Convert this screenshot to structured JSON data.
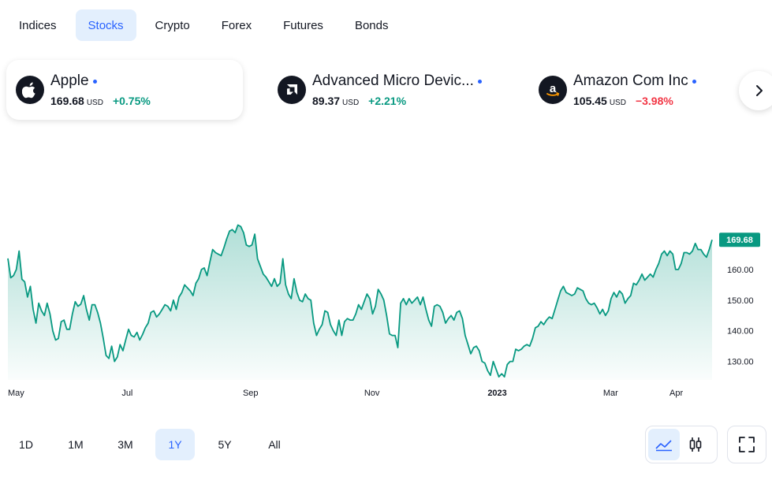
{
  "tabs": [
    {
      "label": "Indices",
      "active": false
    },
    {
      "label": "Stocks",
      "active": true
    },
    {
      "label": "Crypto",
      "active": false
    },
    {
      "label": "Forex",
      "active": false
    },
    {
      "label": "Futures",
      "active": false
    },
    {
      "label": "Bonds",
      "active": false
    }
  ],
  "tickers": [
    {
      "name": "Apple",
      "price": "169.68",
      "currency": "USD",
      "change": "+0.75%",
      "direction": "up",
      "icon": "apple-logo-icon",
      "selected": true
    },
    {
      "name": "Advanced Micro Devic...",
      "price": "89.37",
      "currency": "USD",
      "change": "+2.21%",
      "direction": "up",
      "icon": "amd-logo-icon",
      "selected": false
    },
    {
      "name": "Amazon Com Inc",
      "price": "105.45",
      "currency": "USD",
      "change": "−3.98%",
      "direction": "down",
      "icon": "amazon-logo-icon",
      "selected": false
    }
  ],
  "ranges": [
    {
      "label": "1D",
      "active": false
    },
    {
      "label": "1M",
      "active": false
    },
    {
      "label": "3M",
      "active": false
    },
    {
      "label": "1Y",
      "active": true
    },
    {
      "label": "5Y",
      "active": false
    },
    {
      "label": "All",
      "active": false
    }
  ],
  "controls": {
    "next_icon": "chevron-right-icon",
    "area_icon": "area-chart-icon",
    "candle_icon": "candlestick-icon",
    "fullscreen_icon": "fullscreen-icon"
  },
  "colors": {
    "accent": "#2962ff",
    "line": "#089981",
    "positive": "#089981",
    "negative": "#f23645"
  },
  "chart_data": {
    "type": "area",
    "title": "",
    "xlabel": "",
    "ylabel": "",
    "x_ticks": [
      {
        "label": "May",
        "date": "2022-05-02"
      },
      {
        "label": "Jul",
        "date": "2022-07-01"
      },
      {
        "label": "Sep",
        "date": "2022-09-01"
      },
      {
        "label": "Nov",
        "date": "2022-11-01"
      },
      {
        "label": "2023",
        "date": "2023-01-03",
        "bold": true
      },
      {
        "label": "Mar",
        "date": "2023-03-01"
      },
      {
        "label": "Apr",
        "date": "2023-04-03"
      }
    ],
    "y_ticks": [
      130,
      140,
      150,
      160
    ],
    "ylim": [
      124,
      198
    ],
    "xlim": [
      "2022-05-02",
      "2023-04-21"
    ],
    "last_value": "169.68",
    "grid": false,
    "series": [
      {
        "values": [
          [
            0,
            163.6
          ],
          [
            1,
            157.3
          ],
          [
            2,
            158.0
          ],
          [
            3,
            160.0
          ],
          [
            4,
            166.0
          ],
          [
            5,
            156.8
          ],
          [
            6,
            156.0
          ],
          [
            7,
            151.0
          ],
          [
            8,
            154.5
          ],
          [
            9,
            147.0
          ],
          [
            10,
            142.5
          ],
          [
            11,
            149.0
          ],
          [
            12,
            146.5
          ],
          [
            13,
            145.0
          ],
          [
            14,
            149.0
          ],
          [
            15,
            145.5
          ],
          [
            16,
            140.0
          ],
          [
            17,
            137.0
          ],
          [
            18,
            137.5
          ],
          [
            19,
            143.0
          ],
          [
            20,
            143.5
          ],
          [
            21,
            140.5
          ],
          [
            22,
            140.5
          ],
          [
            23,
            145.5
          ],
          [
            24,
            149.5
          ],
          [
            25,
            148.0
          ],
          [
            26,
            148.7
          ],
          [
            27,
            151.5
          ],
          [
            28,
            147.0
          ],
          [
            29,
            143.5
          ],
          [
            30,
            148.5
          ],
          [
            31,
            148.5
          ],
          [
            32,
            146.0
          ],
          [
            33,
            142.5
          ],
          [
            34,
            137.5
          ],
          [
            35,
            132.0
          ],
          [
            36,
            131.0
          ],
          [
            37,
            135.0
          ],
          [
            38,
            130.0
          ],
          [
            39,
            131.5
          ],
          [
            40,
            135.5
          ],
          [
            41,
            133.5
          ],
          [
            42,
            137.0
          ],
          [
            43,
            140.5
          ],
          [
            44,
            138.5
          ],
          [
            45,
            138.0
          ],
          [
            46,
            139.5
          ],
          [
            47,
            137.0
          ],
          [
            48,
            138.8
          ],
          [
            49,
            141.0
          ],
          [
            50,
            142.5
          ],
          [
            51,
            146.0
          ],
          [
            52,
            146.5
          ],
          [
            53,
            144.5
          ],
          [
            54,
            145.5
          ],
          [
            55,
            147.0
          ],
          [
            56,
            148.5
          ],
          [
            57,
            148.0
          ],
          [
            58,
            146.5
          ],
          [
            59,
            150.0
          ],
          [
            60,
            147.0
          ],
          [
            61,
            151.0
          ],
          [
            62,
            152.5
          ],
          [
            63,
            155.0
          ],
          [
            64,
            154.0
          ],
          [
            65,
            153.0
          ],
          [
            66,
            151.5
          ],
          [
            67,
            155.5
          ],
          [
            68,
            157.0
          ],
          [
            69,
            160.0
          ],
          [
            70,
            160.5
          ],
          [
            71,
            158.0
          ],
          [
            72,
            162.5
          ],
          [
            73,
            166.5
          ],
          [
            74,
            165.5
          ],
          [
            75,
            165.0
          ],
          [
            76,
            164.5
          ],
          [
            77,
            167.0
          ],
          [
            78,
            170.0
          ],
          [
            79,
            172.5
          ],
          [
            80,
            173.0
          ],
          [
            81,
            172.0
          ],
          [
            82,
            174.5
          ],
          [
            83,
            174.0
          ],
          [
            84,
            172.0
          ],
          [
            85,
            168.0
          ],
          [
            86,
            167.5
          ],
          [
            87,
            168.0
          ],
          [
            88,
            171.5
          ],
          [
            89,
            163.5
          ],
          [
            90,
            161.0
          ],
          [
            91,
            158.5
          ],
          [
            92,
            157.5
          ],
          [
            93,
            156.0
          ],
          [
            94,
            154.5
          ],
          [
            95,
            157.0
          ],
          [
            96,
            154.5
          ],
          [
            97,
            155.5
          ],
          [
            98,
            163.5
          ],
          [
            99,
            155.0
          ],
          [
            100,
            152.0
          ],
          [
            101,
            150.5
          ],
          [
            102,
            157.0
          ],
          [
            103,
            152.5
          ],
          [
            104,
            150.0
          ],
          [
            105,
            149.5
          ],
          [
            106,
            152.0
          ],
          [
            107,
            150.5
          ],
          [
            108,
            150.0
          ],
          [
            109,
            142.5
          ],
          [
            110,
            138.5
          ],
          [
            111,
            140.5
          ],
          [
            112,
            142.0
          ],
          [
            113,
            146.5
          ],
          [
            114,
            146.0
          ],
          [
            115,
            142.0
          ],
          [
            116,
            140.0
          ],
          [
            117,
            138.5
          ],
          [
            118,
            143.5
          ],
          [
            119,
            138.5
          ],
          [
            120,
            143.0
          ],
          [
            121,
            144.0
          ],
          [
            122,
            143.5
          ],
          [
            123,
            143.5
          ],
          [
            124,
            145.5
          ],
          [
            125,
            148.5
          ],
          [
            126,
            147.0
          ],
          [
            127,
            149.5
          ],
          [
            128,
            152.0
          ],
          [
            129,
            150.5
          ],
          [
            130,
            145.5
          ],
          [
            131,
            148.0
          ],
          [
            132,
            153.5
          ],
          [
            133,
            152.0
          ],
          [
            134,
            150.0
          ],
          [
            135,
            145.0
          ],
          [
            136,
            139.0
          ],
          [
            137,
            138.5
          ],
          [
            138,
            138.5
          ],
          [
            139,
            134.5
          ],
          [
            140,
            149.0
          ],
          [
            141,
            150.5
          ],
          [
            142,
            148.5
          ],
          [
            143,
            150.5
          ],
          [
            144,
            149.0
          ],
          [
            145,
            150.0
          ],
          [
            146,
            151.0
          ],
          [
            147,
            148.5
          ],
          [
            148,
            151.0
          ],
          [
            149,
            147.0
          ],
          [
            150,
            143.5
          ],
          [
            151,
            141.5
          ],
          [
            152,
            148.0
          ],
          [
            153,
            148.5
          ],
          [
            154,
            148.0
          ],
          [
            155,
            146.0
          ],
          [
            156,
            142.5
          ],
          [
            157,
            144.0
          ],
          [
            158,
            145.0
          ],
          [
            159,
            143.5
          ],
          [
            160,
            146.0
          ],
          [
            161,
            146.5
          ],
          [
            162,
            144.0
          ],
          [
            163,
            138.5
          ],
          [
            164,
            135.5
          ],
          [
            165,
            132.5
          ],
          [
            166,
            134.5
          ],
          [
            167,
            135.0
          ],
          [
            168,
            133.5
          ],
          [
            169,
            130.0
          ],
          [
            170,
            129.5
          ],
          [
            171,
            127.0
          ],
          [
            172,
            125.5
          ],
          [
            173,
            130.0
          ],
          [
            174,
            127.5
          ],
          [
            175,
            125.0
          ],
          [
            176,
            126.0
          ],
          [
            177,
            125.0
          ],
          [
            178,
            129.0
          ],
          [
            179,
            130.0
          ],
          [
            180,
            130.0
          ],
          [
            181,
            134.0
          ],
          [
            182,
            133.5
          ],
          [
            183,
            134.0
          ],
          [
            184,
            135.0
          ],
          [
            185,
            135.5
          ],
          [
            186,
            135.0
          ],
          [
            187,
            137.5
          ],
          [
            188,
            141.0
          ],
          [
            189,
            141.5
          ],
          [
            190,
            143.0
          ],
          [
            191,
            142.0
          ],
          [
            192,
            143.5
          ],
          [
            193,
            144.5
          ],
          [
            194,
            144.0
          ],
          [
            195,
            147.0
          ],
          [
            196,
            150.0
          ],
          [
            197,
            153.0
          ],
          [
            198,
            154.5
          ],
          [
            199,
            152.5
          ],
          [
            200,
            152.0
          ],
          [
            201,
            151.5
          ],
          [
            202,
            152.0
          ],
          [
            203,
            154.0
          ],
          [
            204,
            153.5
          ],
          [
            205,
            153.0
          ],
          [
            206,
            150.5
          ],
          [
            207,
            149.0
          ],
          [
            208,
            148.5
          ],
          [
            209,
            149.0
          ],
          [
            210,
            147.5
          ],
          [
            211,
            145.5
          ],
          [
            212,
            147.0
          ],
          [
            213,
            145.0
          ],
          [
            214,
            146.5
          ],
          [
            215,
            150.5
          ],
          [
            216,
            152.5
          ],
          [
            217,
            151.0
          ],
          [
            218,
            153.0
          ],
          [
            219,
            152.0
          ],
          [
            220,
            149.0
          ],
          [
            221,
            150.5
          ],
          [
            222,
            151.5
          ],
          [
            223,
            155.5
          ],
          [
            224,
            155.0
          ],
          [
            225,
            156.5
          ],
          [
            226,
            158.5
          ],
          [
            227,
            156.5
          ],
          [
            228,
            157.5
          ],
          [
            229,
            158.5
          ],
          [
            230,
            157.5
          ],
          [
            231,
            160.0
          ],
          [
            232,
            162.0
          ],
          [
            233,
            165.0
          ],
          [
            234,
            166.0
          ],
          [
            235,
            164.5
          ],
          [
            236,
            166.0
          ],
          [
            237,
            165.0
          ],
          [
            238,
            160.0
          ],
          [
            239,
            160.0
          ],
          [
            240,
            162.0
          ],
          [
            241,
            165.5
          ],
          [
            242,
            165.5
          ],
          [
            243,
            165.0
          ],
          [
            244,
            166.0
          ],
          [
            245,
            168.5
          ],
          [
            246,
            166.5
          ],
          [
            247,
            166.5
          ],
          [
            248,
            165.0
          ],
          [
            249,
            164.0
          ],
          [
            250,
            166.5
          ],
          [
            251,
            169.68
          ]
        ]
      }
    ]
  }
}
